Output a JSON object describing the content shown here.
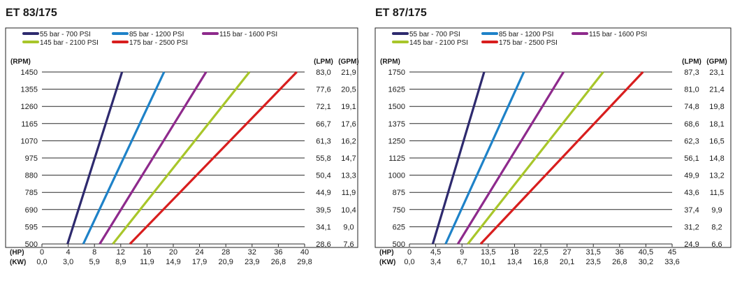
{
  "chart_data": [
    {
      "type": "line",
      "title": "ET 83/175",
      "legend_placement": "top-left",
      "grid": true,
      "ylabel": "(RPM)",
      "flow_labels": [
        "(LPM)",
        "(GPM)"
      ],
      "x_labels": [
        "(HP)",
        "(KW)"
      ],
      "xlim": [
        0,
        40
      ],
      "ylim": [
        500,
        1450
      ],
      "rpm_ticks": [
        "500",
        "595",
        "690",
        "785",
        "880",
        "975",
        "1070",
        "1165",
        "1260",
        "1355",
        "1450"
      ],
      "lpm": [
        "28,6",
        "34,1",
        "39,5",
        "44,9",
        "50,4",
        "55,8",
        "61,3",
        "66,7",
        "72,1",
        "77,6",
        "83,0"
      ],
      "gpm": [
        "7,6",
        "9,0",
        "10,4",
        "11,9",
        "13,3",
        "14,7",
        "16,2",
        "17,6",
        "19,1",
        "20,5",
        "21,9"
      ],
      "hp_ticks": [
        "0",
        "4",
        "8",
        "12",
        "16",
        "20",
        "24",
        "28",
        "32",
        "36",
        "40"
      ],
      "kw_ticks": [
        "0,0",
        "3,0",
        "5,9",
        "8,9",
        "11,9",
        "14,9",
        "17,9",
        "20,9",
        "23,9",
        "26,8",
        "29,8"
      ],
      "series": [
        {
          "name": "55 bar - 700 PSI",
          "color": "#2e2a6e",
          "x": [
            3.9,
            12.2
          ],
          "y": [
            500,
            1450
          ]
        },
        {
          "name": "85 bar - 1200 PSI",
          "color": "#1e82c8",
          "x": [
            6.3,
            18.6
          ],
          "y": [
            500,
            1450
          ]
        },
        {
          "name": "115 bar - 1600 PSI",
          "color": "#8e2a8c",
          "x": [
            8.8,
            25.0
          ],
          "y": [
            500,
            1450
          ]
        },
        {
          "name": "145 bar - 2100 PSI",
          "color": "#a8c62a",
          "x": [
            10.8,
            31.6
          ],
          "y": [
            500,
            1450
          ]
        },
        {
          "name": "175 bar - 2500 PSI",
          "color": "#d81e1e",
          "x": [
            13.4,
            38.8
          ],
          "y": [
            500,
            1450
          ]
        }
      ]
    },
    {
      "type": "line",
      "title": "ET 87/175",
      "legend_placement": "top-left",
      "grid": true,
      "ylabel": "(RPM)",
      "flow_labels": [
        "(LPM)",
        "(GPM)"
      ],
      "x_labels": [
        "(HP)",
        "(KW)"
      ],
      "xlim": [
        0,
        45
      ],
      "ylim": [
        500,
        1750
      ],
      "rpm_ticks": [
        "500",
        "625",
        "750",
        "875",
        "1000",
        "1125",
        "1250",
        "1375",
        "1500",
        "1625",
        "1750"
      ],
      "lpm": [
        "24,9",
        "31,2",
        "37,4",
        "43,6",
        "49,9",
        "56,1",
        "62,3",
        "68,6",
        "74,8",
        "81,0",
        "87,3"
      ],
      "gpm": [
        "6,6",
        "8,2",
        "9,9",
        "11,5",
        "13,2",
        "14,8",
        "16,5",
        "18,1",
        "19,8",
        "21,4",
        "23,1"
      ],
      "hp_ticks": [
        "0",
        "4,5",
        "9",
        "13,5",
        "18",
        "22,5",
        "27",
        "31,5",
        "36",
        "40,5",
        "45"
      ],
      "kw_ticks": [
        "0,0",
        "3,4",
        "6,7",
        "10,1",
        "13,4",
        "16,8",
        "20,1",
        "23,5",
        "26,8",
        "30,2",
        "33,6"
      ],
      "series": [
        {
          "name": "55 bar - 700 PSI",
          "color": "#2e2a6e",
          "x": [
            4.0,
            12.8
          ],
          "y": [
            500,
            1750
          ]
        },
        {
          "name": "85 bar - 1200 PSI",
          "color": "#1e82c8",
          "x": [
            6.2,
            19.6
          ],
          "y": [
            500,
            1750
          ]
        },
        {
          "name": "115 bar - 1600 PSI",
          "color": "#8e2a8c",
          "x": [
            8.3,
            26.4
          ],
          "y": [
            500,
            1750
          ]
        },
        {
          "name": "145 bar - 2100 PSI",
          "color": "#a8c62a",
          "x": [
            10.0,
            33.2
          ],
          "y": [
            500,
            1750
          ]
        },
        {
          "name": "175 bar - 2500 PSI",
          "color": "#d81e1e",
          "x": [
            12.2,
            40.0
          ],
          "y": [
            500,
            1750
          ]
        }
      ]
    }
  ]
}
